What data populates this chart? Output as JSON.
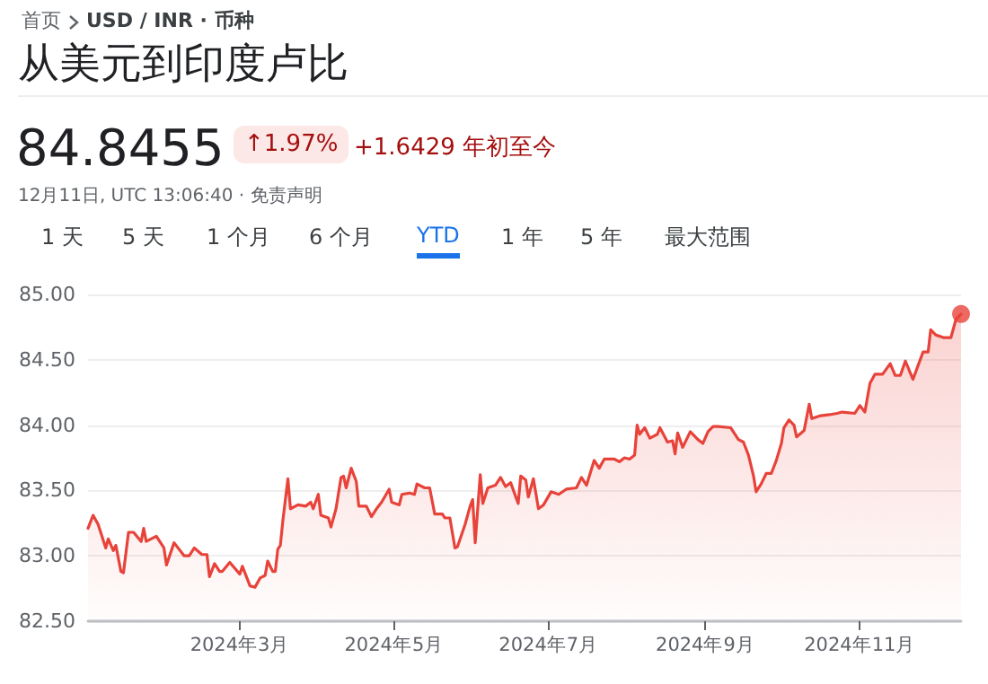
{
  "chart_data": {
    "type": "area",
    "title": "从美元到印度卢比",
    "annotations": [
      "首页",
      "USD / INR · 币种",
      "84.8455",
      "↑1.97%",
      "+1.6429 年初至今",
      "12月11日, UTC 13:06:40 · 免责声明",
      "1 天",
      "5 天",
      "1 个月",
      "6 个月",
      "YTD",
      "1 年",
      "5 年",
      "最大范围"
    ],
    "xlim": [
      "2024-01-01",
      "2024-12-11"
    ],
    "xticks": [
      {
        "value": "2024-03-01",
        "label": "2024年3月"
      },
      {
        "value": "2024-05-01",
        "label": "2024年5月"
      },
      {
        "value": "2024-07-01",
        "label": "2024年7月"
      },
      {
        "value": "2024-09-01",
        "label": "2024年9月"
      },
      {
        "value": "2024-11-01",
        "label": "2024年11月"
      }
    ],
    "ylim": [
      82.5,
      85
    ],
    "yticks": [
      {
        "value": 82.5,
        "label": "82.50"
      },
      {
        "value": 83,
        "label": "83.00"
      },
      {
        "value": 83.5,
        "label": "83.50"
      },
      {
        "value": 84,
        "label": "84.00"
      },
      {
        "value": 84.5,
        "label": "84.50"
      },
      {
        "value": 85,
        "label": "85.00"
      }
    ],
    "grid": "y",
    "marker": "none",
    "line_style": "solid",
    "series": [
      {
        "color": "#e8433a",
        "x": [
          "2024-01-01",
          "2024-01-03",
          "2024-01-05",
          "2024-01-08",
          "2024-01-09",
          "2024-01-11",
          "2024-01-12",
          "2024-01-14",
          "2024-01-15",
          "2024-01-17",
          "2024-01-19",
          "2024-01-22",
          "2024-01-23",
          "2024-01-24",
          "2024-01-28",
          "2024-01-31",
          "2024-02-01",
          "2024-02-04",
          "2024-02-08",
          "2024-02-10",
          "2024-02-12",
          "2024-02-15",
          "2024-02-17",
          "2024-02-18",
          "2024-02-20",
          "2024-02-22",
          "2024-02-23",
          "2024-02-26",
          "2024-03-01",
          "2024-03-02",
          "2024-03-05",
          "2024-03-07",
          "2024-03-09",
          "2024-03-11",
          "2024-03-12",
          "2024-03-14",
          "2024-03-15",
          "2024-03-16",
          "2024-03-17",
          "2024-03-18",
          "2024-03-20",
          "2024-03-21",
          "2024-03-24",
          "2024-03-27",
          "2024-03-29",
          "2024-03-30",
          "2024-04-01",
          "2024-04-02",
          "2024-04-05",
          "2024-04-06",
          "2024-04-08",
          "2024-04-10",
          "2024-04-11",
          "2024-04-12",
          "2024-04-14",
          "2024-04-16",
          "2024-04-17",
          "2024-04-20",
          "2024-04-22",
          "2024-04-24",
          "2024-04-26",
          "2024-04-29",
          "2024-04-30",
          "2024-05-03",
          "2024-05-04",
          "2024-05-07",
          "2024-05-09",
          "2024-05-10",
          "2024-05-13",
          "2024-05-15",
          "2024-05-16",
          "2024-05-17",
          "2024-05-20",
          "2024-05-21",
          "2024-05-23",
          "2024-05-25",
          "2024-05-26",
          "2024-05-29",
          "2024-05-31",
          "2024-06-01",
          "2024-06-02",
          "2024-06-04",
          "2024-06-05",
          "2024-06-07",
          "2024-06-10",
          "2024-06-12",
          "2024-06-14",
          "2024-06-16",
          "2024-06-19",
          "2024-06-20",
          "2024-06-22",
          "2024-06-23",
          "2024-06-25",
          "2024-06-27",
          "2024-06-29",
          "2024-07-02",
          "2024-07-05",
          "2024-07-08",
          "2024-07-12",
          "2024-07-14",
          "2024-07-16",
          "2024-07-19",
          "2024-07-21",
          "2024-07-23",
          "2024-07-27",
          "2024-07-29",
          "2024-07-31",
          "2024-08-02",
          "2024-08-04",
          "2024-08-05",
          "2024-08-06",
          "2024-08-08",
          "2024-08-10",
          "2024-08-13",
          "2024-08-14",
          "2024-08-17",
          "2024-08-19",
          "2024-08-20",
          "2024-08-21",
          "2024-08-23",
          "2024-08-26",
          "2024-08-29",
          "2024-08-31",
          "2024-09-02",
          "2024-09-04",
          "2024-09-06",
          "2024-09-11",
          "2024-09-14",
          "2024-09-16",
          "2024-09-18",
          "2024-09-20",
          "2024-09-21",
          "2024-09-23",
          "2024-09-25",
          "2024-09-27",
          "2024-09-29",
          "2024-10-01",
          "2024-10-02",
          "2024-10-04",
          "2024-10-06",
          "2024-10-07",
          "2024-10-10",
          "2024-10-12",
          "2024-10-13",
          "2024-10-16",
          "2024-10-20",
          "2024-10-23",
          "2024-10-25",
          "2024-10-30",
          "2024-11-01",
          "2024-11-03",
          "2024-11-05",
          "2024-11-07",
          "2024-11-10",
          "2024-11-13",
          "2024-11-15",
          "2024-11-17",
          "2024-11-19",
          "2024-11-22",
          "2024-11-26",
          "2024-11-28",
          "2024-11-29",
          "2024-12-01",
          "2024-12-04",
          "2024-12-07",
          "2024-12-09",
          "2024-12-11"
        ],
        "values": [
          83.21,
          83.31,
          83.24,
          83.06,
          83.13,
          83.04,
          83.08,
          82.88,
          82.87,
          83.18,
          83.18,
          83.11,
          83.21,
          83.11,
          83.15,
          83.06,
          82.93,
          83.1,
          83.0,
          83.0,
          83.06,
          83.01,
          83.01,
          82.84,
          82.94,
          82.88,
          82.88,
          82.95,
          82.86,
          82.92,
          82.77,
          82.76,
          82.83,
          82.85,
          82.96,
          82.88,
          82.88,
          83.05,
          83.08,
          83.27,
          83.59,
          83.36,
          83.39,
          83.38,
          83.41,
          83.36,
          83.47,
          83.31,
          83.29,
          83.22,
          83.36,
          83.6,
          83.61,
          83.52,
          83.67,
          83.57,
          83.38,
          83.38,
          83.3,
          83.36,
          83.41,
          83.51,
          83.41,
          83.39,
          83.47,
          83.48,
          83.47,
          83.55,
          83.52,
          83.52,
          83.42,
          83.32,
          83.32,
          83.29,
          83.29,
          83.06,
          83.07,
          83.24,
          83.38,
          83.43,
          83.1,
          83.62,
          83.4,
          83.52,
          83.54,
          83.6,
          83.53,
          83.56,
          83.4,
          83.61,
          83.58,
          83.45,
          83.59,
          83.36,
          83.39,
          83.49,
          83.47,
          83.51,
          83.52,
          83.6,
          83.54,
          83.73,
          83.67,
          83.74,
          83.74,
          83.72,
          83.75,
          83.74,
          83.77,
          84.0,
          83.93,
          83.98,
          83.9,
          83.93,
          83.98,
          83.87,
          83.88,
          83.78,
          83.94,
          83.83,
          83.95,
          83.89,
          83.86,
          83.95,
          83.99,
          83.99,
          83.98,
          83.89,
          83.87,
          83.77,
          83.61,
          83.49,
          83.55,
          83.63,
          83.63,
          83.73,
          83.86,
          83.98,
          84.04,
          84.0,
          83.91,
          83.96,
          84.16,
          84.05,
          84.07,
          84.08,
          84.09,
          84.1,
          84.09,
          84.15,
          84.1,
          84.32,
          84.39,
          84.39,
          84.47,
          84.38,
          84.38,
          84.49,
          84.35,
          84.56,
          84.56,
          84.73,
          84.69,
          84.67,
          84.67,
          84.81,
          84.85
        ]
      },
      {
        "type": "scatter",
        "color": "#e8433a",
        "marker": "circle",
        "x": [
          "2024-12-11"
        ],
        "values": [
          84.85
        ]
      }
    ]
  }
}
